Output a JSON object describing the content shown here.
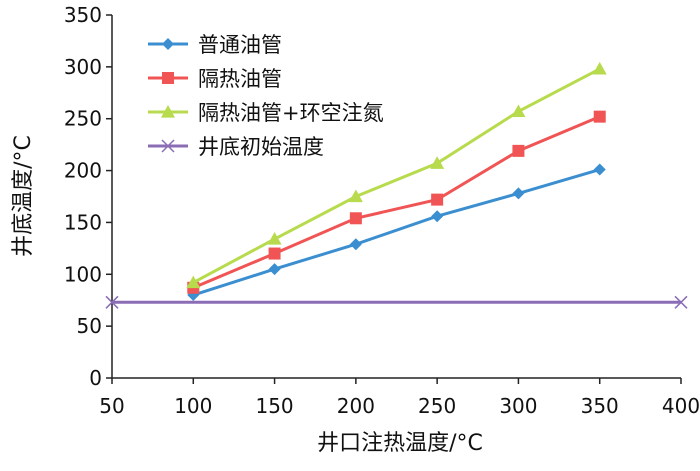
{
  "chart_data": {
    "type": "line",
    "xlabel": "井口注热温度/°C",
    "ylabel": "井底温度/°C",
    "xlim": [
      50,
      400
    ],
    "ylim": [
      0,
      350
    ],
    "x_ticks": [
      "50",
      "100",
      "150",
      "200",
      "250",
      "300",
      "350",
      "400"
    ],
    "y_ticks": [
      "0",
      "50",
      "100",
      "150",
      "200",
      "250",
      "300",
      "350"
    ],
    "grid": false,
    "legend_position": "top-left",
    "series": [
      {
        "name": "普通油管",
        "marker": "diamond",
        "color": "#3B8FD0",
        "x": [
          100,
          150,
          200,
          250,
          300,
          350
        ],
        "y": [
          80,
          105,
          129,
          156,
          178,
          201
        ]
      },
      {
        "name": "隔热油管",
        "marker": "square",
        "color": "#F05454",
        "x": [
          100,
          150,
          200,
          250,
          300,
          350
        ],
        "y": [
          87,
          120,
          154,
          172,
          219,
          252
        ]
      },
      {
        "name": "隔热油管+环空注氮",
        "marker": "triangle",
        "color": "#B7DB4C",
        "x": [
          100,
          150,
          200,
          250,
          300,
          350
        ],
        "y": [
          92,
          134,
          175,
          207,
          257,
          298
        ]
      },
      {
        "name": "井底初始温度",
        "marker": "x",
        "color": "#8A6DB5",
        "x": [
          50,
          400
        ],
        "y": [
          73,
          73
        ]
      }
    ]
  }
}
